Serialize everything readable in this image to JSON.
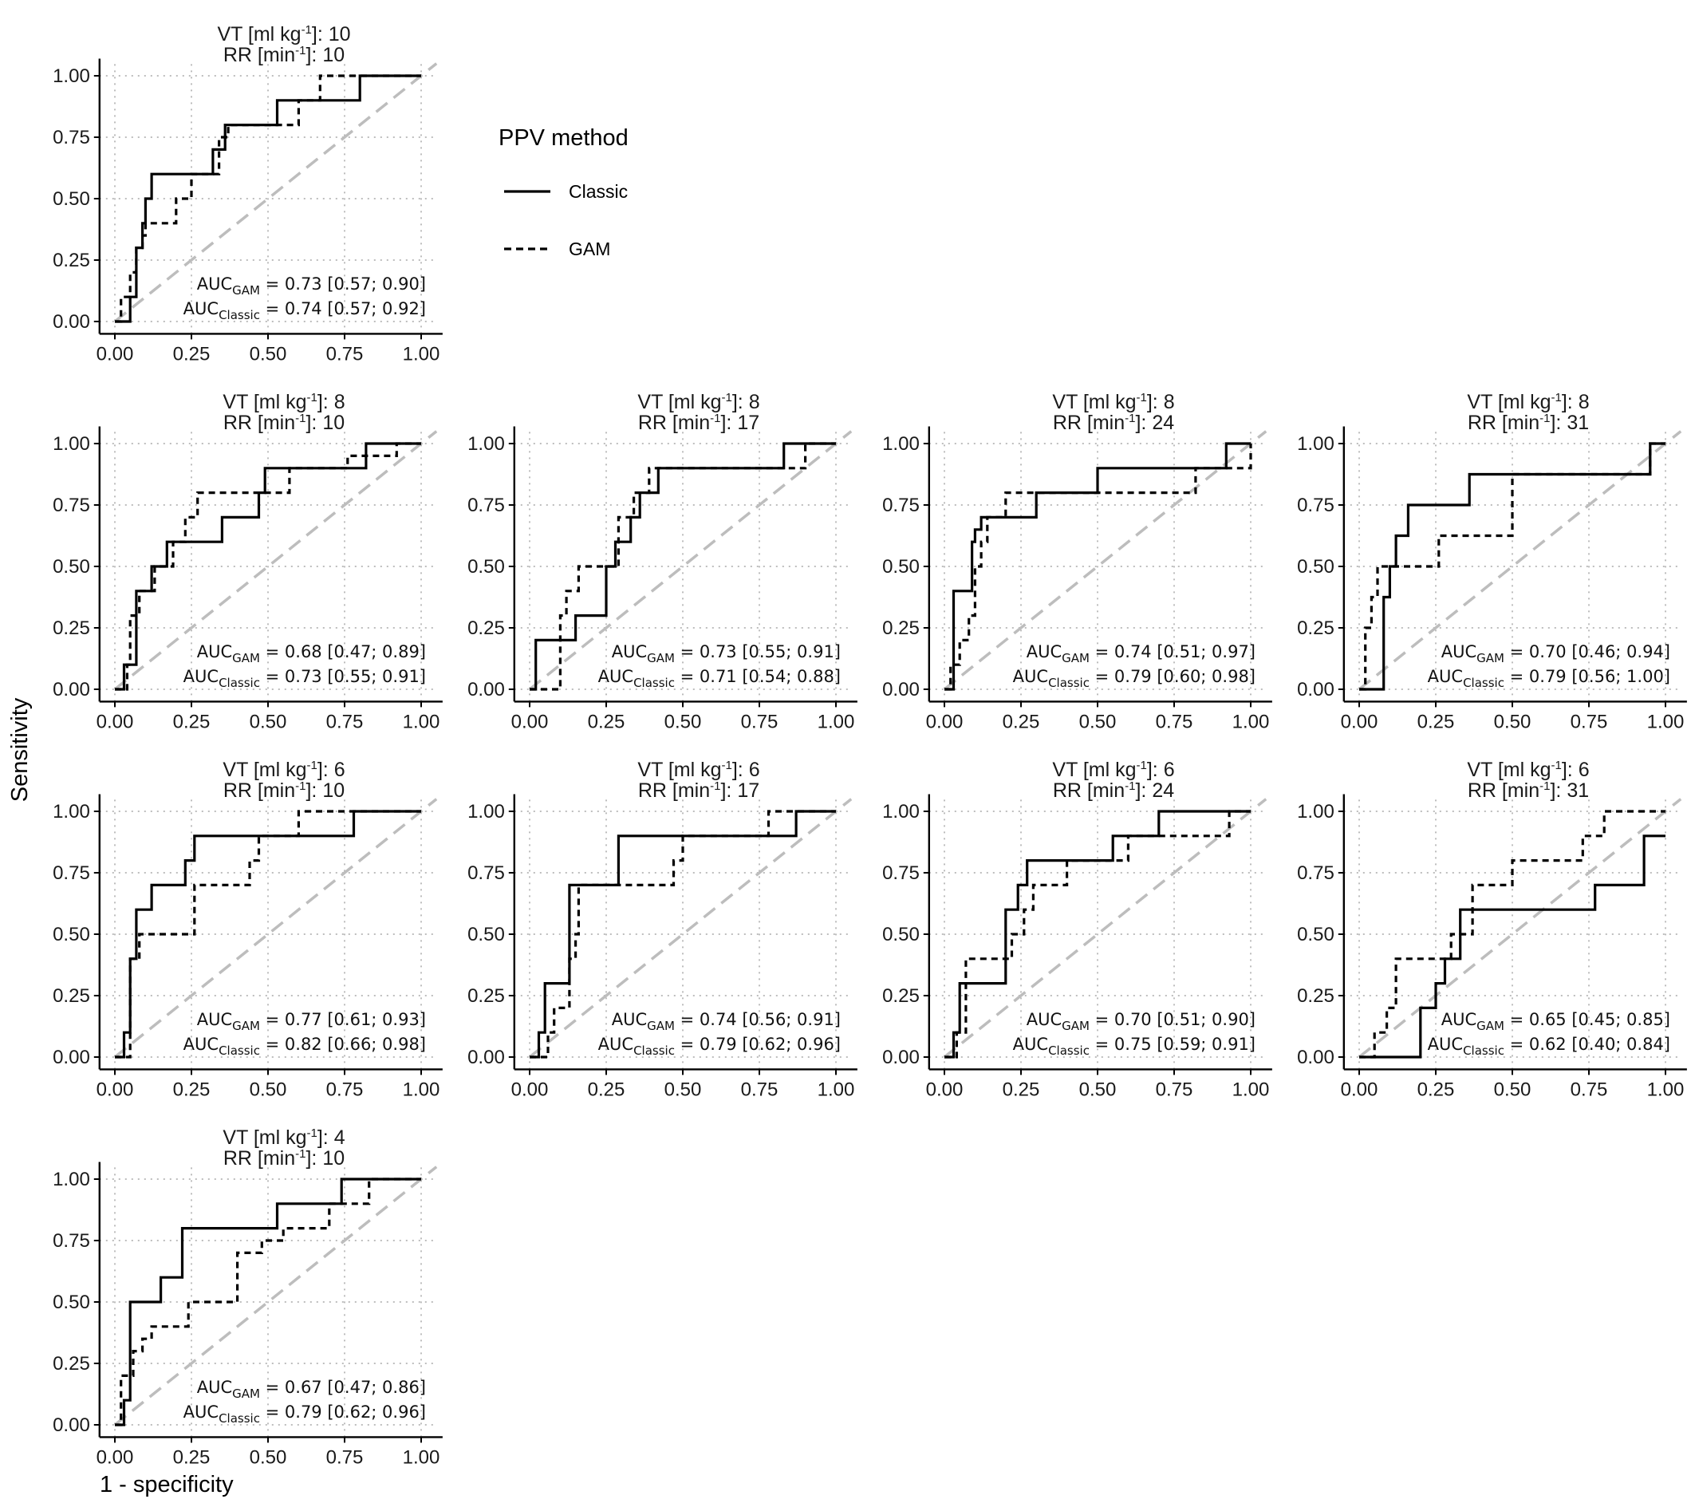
{
  "chart_data": {
    "type": "line",
    "xlabel": "1 - specificity",
    "ylabel": "Sensitivity",
    "xlim": [
      0,
      1
    ],
    "ylim": [
      0,
      1
    ],
    "xticks": [
      "0.00",
      "0.25",
      "0.50",
      "0.75",
      "1.00"
    ],
    "yticks": [
      "0.00",
      "0.25",
      "0.50",
      "0.75",
      "1.00"
    ],
    "grid": "dotted",
    "reference_line": "diagonal",
    "legend": {
      "title": "PPV method",
      "entries": [
        {
          "label": "Classic",
          "linestyle": "solid"
        },
        {
          "label": "GAM",
          "linestyle": "dashed"
        }
      ],
      "placement": "top"
    },
    "auc_label": "AUC",
    "vt_label": "VT [ml kg",
    "rr_label": "RR [min",
    "sup_label": "-1",
    "panels": [
      {
        "vt": "10",
        "rr": "10",
        "auc_gam": " = 0.73 [0.57; 0.90]",
        "auc_classic": " = 0.74 [0.57; 0.92]",
        "series": [
          {
            "name": "Classic",
            "x": [
              0,
              0.05,
              0.05,
              0.07,
              0.07,
              0.09,
              0.09,
              0.1,
              0.1,
              0.12,
              0.12,
              0.32,
              0.32,
              0.36,
              0.36,
              0.53,
              0.53,
              0.8,
              0.8,
              1.0
            ],
            "y": [
              0,
              0,
              0.1,
              0.1,
              0.3,
              0.3,
              0.4,
              0.4,
              0.5,
              0.5,
              0.6,
              0.6,
              0.7,
              0.7,
              0.8,
              0.8,
              0.9,
              0.9,
              1.0,
              1.0
            ]
          },
          {
            "name": "GAM",
            "x": [
              0,
              0.02,
              0.02,
              0.05,
              0.05,
              0.07,
              0.07,
              0.09,
              0.09,
              0.1,
              0.1,
              0.2,
              0.2,
              0.25,
              0.25,
              0.34,
              0.34,
              0.37,
              0.37,
              0.6,
              0.6,
              0.67,
              0.67,
              1.0
            ],
            "y": [
              0,
              0,
              0.1,
              0.1,
              0.2,
              0.2,
              0.3,
              0.3,
              0.35,
              0.35,
              0.4,
              0.4,
              0.5,
              0.5,
              0.6,
              0.6,
              0.75,
              0.75,
              0.8,
              0.8,
              0.9,
              0.9,
              1.0,
              1.0
            ]
          }
        ]
      },
      {
        "vt": "8",
        "rr": "10",
        "auc_gam": " = 0.68 [0.47; 0.89]",
        "auc_classic": " = 0.73 [0.55; 0.91]",
        "series": [
          {
            "name": "Classic",
            "x": [
              0,
              0.03,
              0.03,
              0.07,
              0.07,
              0.12,
              0.12,
              0.17,
              0.17,
              0.35,
              0.35,
              0.47,
              0.47,
              0.49,
              0.49,
              0.82,
              0.82,
              1.0
            ],
            "y": [
              0,
              0,
              0.1,
              0.1,
              0.4,
              0.4,
              0.5,
              0.5,
              0.6,
              0.6,
              0.7,
              0.7,
              0.8,
              0.8,
              0.9,
              0.9,
              1.0,
              1.0
            ]
          },
          {
            "name": "GAM",
            "x": [
              0,
              0.04,
              0.04,
              0.05,
              0.05,
              0.08,
              0.08,
              0.13,
              0.13,
              0.19,
              0.19,
              0.23,
              0.23,
              0.27,
              0.27,
              0.57,
              0.57,
              0.76,
              0.76,
              0.92,
              0.92,
              1.0
            ],
            "y": [
              0,
              0,
              0.1,
              0.1,
              0.3,
              0.3,
              0.4,
              0.4,
              0.5,
              0.5,
              0.6,
              0.6,
              0.7,
              0.7,
              0.8,
              0.8,
              0.9,
              0.9,
              0.95,
              0.95,
              1.0,
              1.0
            ]
          }
        ]
      },
      {
        "vt": "8",
        "rr": "17",
        "auc_gam": " = 0.73 [0.55; 0.91]",
        "auc_classic": " = 0.71 [0.54; 0.88]",
        "series": [
          {
            "name": "Classic",
            "x": [
              0,
              0.02,
              0.02,
              0.15,
              0.15,
              0.25,
              0.25,
              0.28,
              0.28,
              0.33,
              0.33,
              0.36,
              0.36,
              0.42,
              0.42,
              0.83,
              0.83,
              1.0
            ],
            "y": [
              0,
              0,
              0.2,
              0.2,
              0.3,
              0.3,
              0.5,
              0.5,
              0.6,
              0.6,
              0.7,
              0.7,
              0.8,
              0.8,
              0.9,
              0.9,
              1.0,
              1.0
            ]
          },
          {
            "name": "GAM",
            "x": [
              0,
              0.1,
              0.1,
              0.12,
              0.12,
              0.16,
              0.16,
              0.29,
              0.29,
              0.34,
              0.34,
              0.39,
              0.39,
              0.9,
              0.9,
              1.0
            ],
            "y": [
              0,
              0,
              0.3,
              0.3,
              0.4,
              0.4,
              0.5,
              0.5,
              0.7,
              0.7,
              0.8,
              0.8,
              0.9,
              0.9,
              1.0,
              1.0
            ]
          }
        ]
      },
      {
        "vt": "8",
        "rr": "24",
        "auc_gam": " = 0.74 [0.51; 0.97]",
        "auc_classic": " = 0.79 [0.60; 0.98]",
        "series": [
          {
            "name": "Classic",
            "x": [
              0,
              0.03,
              0.03,
              0.09,
              0.09,
              0.1,
              0.1,
              0.12,
              0.12,
              0.3,
              0.3,
              0.5,
              0.5,
              0.92,
              0.92,
              1.0
            ],
            "y": [
              0,
              0,
              0.4,
              0.4,
              0.6,
              0.6,
              0.65,
              0.65,
              0.7,
              0.7,
              0.8,
              0.8,
              0.9,
              0.9,
              1.0,
              1.0
            ]
          },
          {
            "name": "GAM",
            "x": [
              0,
              0.02,
              0.02,
              0.05,
              0.05,
              0.08,
              0.08,
              0.1,
              0.1,
              0.12,
              0.12,
              0.14,
              0.14,
              0.2,
              0.2,
              0.82,
              0.82,
              1.0,
              1.0
            ],
            "y": [
              0,
              0,
              0.1,
              0.1,
              0.2,
              0.2,
              0.3,
              0.3,
              0.5,
              0.5,
              0.6,
              0.6,
              0.7,
              0.7,
              0.8,
              0.8,
              0.9,
              0.9,
              1.0
            ]
          }
        ]
      },
      {
        "vt": "8",
        "rr": "31",
        "auc_gam": " = 0.70 [0.46; 0.94]",
        "auc_classic": " = 0.79 [0.56; 1.00]",
        "series": [
          {
            "name": "Classic",
            "x": [
              0,
              0.08,
              0.08,
              0.1,
              0.1,
              0.12,
              0.12,
              0.16,
              0.16,
              0.36,
              0.36,
              0.95,
              0.95,
              1.0
            ],
            "y": [
              0,
              0,
              0.375,
              0.375,
              0.5,
              0.5,
              0.625,
              0.625,
              0.75,
              0.75,
              0.875,
              0.875,
              1.0,
              1.0
            ]
          },
          {
            "name": "GAM",
            "x": [
              0,
              0.02,
              0.02,
              0.04,
              0.04,
              0.06,
              0.06,
              0.08,
              0.08,
              0.26,
              0.26,
              0.5,
              0.5,
              0.95,
              0.95,
              1.0
            ],
            "y": [
              0,
              0,
              0.25,
              0.25,
              0.375,
              0.375,
              0.5,
              0.5,
              0.5,
              0.5,
              0.625,
              0.625,
              0.875,
              0.875,
              1.0,
              1.0
            ]
          }
        ]
      },
      {
        "vt": "6",
        "rr": "10",
        "auc_gam": " = 0.77 [0.61; 0.93]",
        "auc_classic": " = 0.82 [0.66; 0.98]",
        "series": [
          {
            "name": "Classic",
            "x": [
              0,
              0.03,
              0.03,
              0.05,
              0.05,
              0.07,
              0.07,
              0.12,
              0.12,
              0.23,
              0.23,
              0.26,
              0.26,
              0.78,
              0.78,
              1.0
            ],
            "y": [
              0,
              0,
              0.1,
              0.1,
              0.4,
              0.4,
              0.6,
              0.6,
              0.7,
              0.7,
              0.8,
              0.8,
              0.9,
              0.9,
              1.0,
              1.0
            ]
          },
          {
            "name": "GAM",
            "x": [
              0,
              0.05,
              0.05,
              0.08,
              0.08,
              0.26,
              0.26,
              0.44,
              0.44,
              0.47,
              0.47,
              0.6,
              0.6,
              0.85,
              0.85,
              1.0
            ],
            "y": [
              0,
              0,
              0.4,
              0.4,
              0.5,
              0.5,
              0.7,
              0.7,
              0.8,
              0.8,
              0.9,
              0.9,
              1.0,
              1.0,
              1.0,
              1.0
            ]
          }
        ]
      },
      {
        "vt": "6",
        "rr": "17",
        "auc_gam": " = 0.74 [0.56; 0.91]",
        "auc_classic": " = 0.79 [0.62; 0.96]",
        "series": [
          {
            "name": "Classic",
            "x": [
              0,
              0.03,
              0.03,
              0.05,
              0.05,
              0.13,
              0.13,
              0.29,
              0.29,
              0.87,
              0.87,
              1.0
            ],
            "y": [
              0,
              0,
              0.1,
              0.1,
              0.3,
              0.3,
              0.7,
              0.7,
              0.9,
              0.9,
              1.0,
              1.0
            ]
          },
          {
            "name": "GAM",
            "x": [
              0,
              0.06,
              0.06,
              0.08,
              0.08,
              0.13,
              0.13,
              0.15,
              0.15,
              0.16,
              0.16,
              0.47,
              0.47,
              0.5,
              0.5,
              0.78,
              0.78,
              1.0
            ],
            "y": [
              0,
              0,
              0.1,
              0.1,
              0.2,
              0.2,
              0.4,
              0.4,
              0.5,
              0.5,
              0.7,
              0.7,
              0.8,
              0.8,
              0.9,
              0.9,
              1.0,
              1.0
            ]
          }
        ]
      },
      {
        "vt": "6",
        "rr": "24",
        "auc_gam": " = 0.70 [0.51; 0.90]",
        "auc_classic": " = 0.75 [0.59; 0.91]",
        "series": [
          {
            "name": "Classic",
            "x": [
              0,
              0.03,
              0.03,
              0.05,
              0.05,
              0.2,
              0.2,
              0.24,
              0.24,
              0.27,
              0.27,
              0.55,
              0.55,
              0.7,
              0.7,
              1.0
            ],
            "y": [
              0,
              0,
              0.1,
              0.1,
              0.3,
              0.3,
              0.6,
              0.6,
              0.7,
              0.7,
              0.8,
              0.8,
              0.9,
              0.9,
              1.0,
              1.0
            ]
          },
          {
            "name": "GAM",
            "x": [
              0,
              0.04,
              0.04,
              0.07,
              0.07,
              0.2,
              0.2,
              0.22,
              0.22,
              0.26,
              0.26,
              0.29,
              0.29,
              0.4,
              0.4,
              0.6,
              0.6,
              0.93,
              0.93,
              1.0
            ],
            "y": [
              0,
              0,
              0.1,
              0.1,
              0.4,
              0.4,
              0.4,
              0.4,
              0.5,
              0.5,
              0.6,
              0.6,
              0.7,
              0.7,
              0.8,
              0.8,
              0.9,
              0.9,
              1.0,
              1.0
            ]
          }
        ]
      },
      {
        "vt": "6",
        "rr": "31",
        "auc_gam": " = 0.65 [0.45; 0.85]",
        "auc_classic": " = 0.62 [0.40; 0.84]",
        "series": [
          {
            "name": "Classic",
            "x": [
              0,
              0.2,
              0.2,
              0.25,
              0.25,
              0.28,
              0.28,
              0.33,
              0.33,
              0.77,
              0.77,
              0.93,
              0.93,
              1.0
            ],
            "y": [
              0,
              0,
              0.2,
              0.2,
              0.3,
              0.3,
              0.4,
              0.4,
              0.6,
              0.6,
              0.7,
              0.7,
              0.9,
              0.9
            ]
          },
          {
            "name": "GAM",
            "x": [
              0,
              0.05,
              0.05,
              0.09,
              0.09,
              0.12,
              0.12,
              0.25,
              0.25,
              0.3,
              0.3,
              0.37,
              0.37,
              0.5,
              0.5,
              0.73,
              0.73,
              0.8,
              0.8,
              0.94,
              0.94,
              1.0
            ],
            "y": [
              0,
              0,
              0.1,
              0.1,
              0.2,
              0.2,
              0.4,
              0.4,
              0.4,
              0.4,
              0.5,
              0.5,
              0.7,
              0.7,
              0.8,
              0.8,
              0.9,
              0.9,
              1.0,
              1.0,
              1.0,
              1.0
            ]
          }
        ]
      },
      {
        "vt": "4",
        "rr": "10",
        "auc_gam": " = 0.67 [0.47; 0.86]",
        "auc_classic": " = 0.79 [0.62; 0.96]",
        "series": [
          {
            "name": "Classic",
            "x": [
              0,
              0.03,
              0.03,
              0.05,
              0.05,
              0.15,
              0.15,
              0.22,
              0.22,
              0.53,
              0.53,
              0.74,
              0.74,
              1.0
            ],
            "y": [
              0,
              0,
              0.1,
              0.1,
              0.5,
              0.5,
              0.6,
              0.6,
              0.8,
              0.8,
              0.9,
              0.9,
              1.0,
              1.0
            ]
          },
          {
            "name": "GAM",
            "x": [
              0,
              0.02,
              0.02,
              0.06,
              0.06,
              0.09,
              0.09,
              0.12,
              0.12,
              0.24,
              0.24,
              0.4,
              0.4,
              0.48,
              0.48,
              0.55,
              0.55,
              0.7,
              0.7,
              0.83,
              0.83,
              1.0
            ],
            "y": [
              0,
              0,
              0.2,
              0.2,
              0.3,
              0.3,
              0.35,
              0.35,
              0.4,
              0.4,
              0.5,
              0.5,
              0.7,
              0.7,
              0.75,
              0.75,
              0.8,
              0.8,
              0.9,
              0.9,
              1.0,
              1.0
            ]
          }
        ]
      }
    ]
  }
}
